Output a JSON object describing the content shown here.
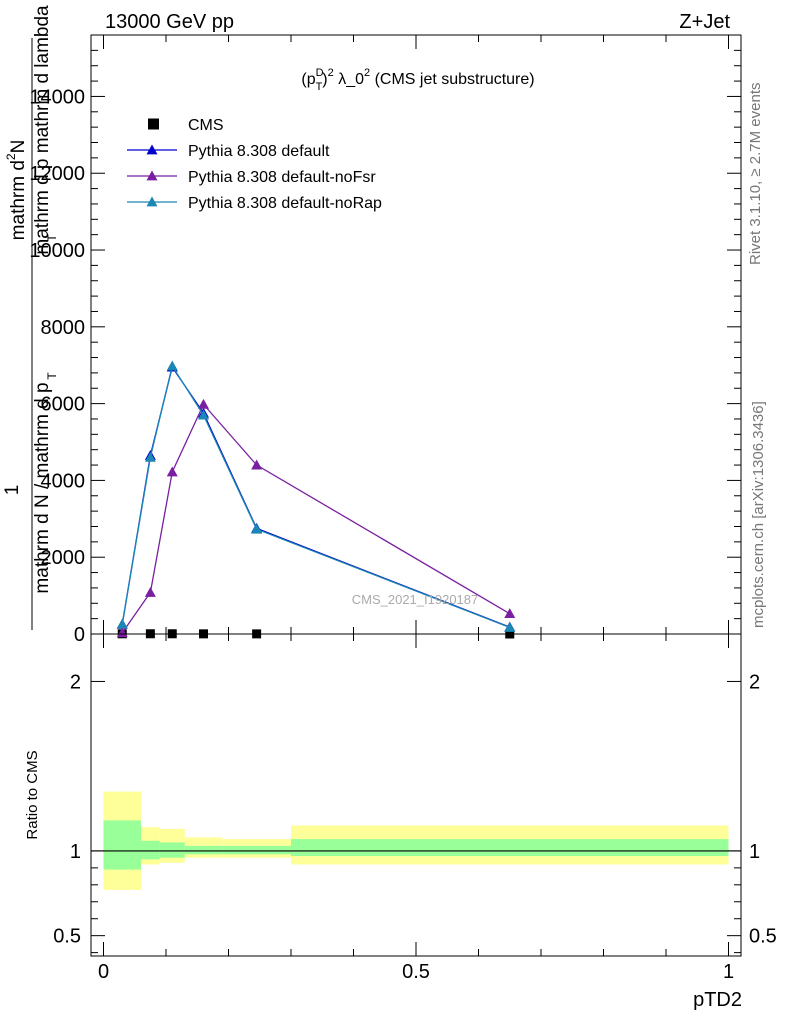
{
  "header": {
    "left": "13000 GeV pp",
    "right": "Z+Jet"
  },
  "side_labels": {
    "rivet": "Rivet 3.1.10, ≥ 2.7M events",
    "mcplots": "mcplots.cern.ch [arXiv:1306.3436]"
  },
  "chart_data": [
    {
      "type": "line",
      "title_parts": {
        "pre": "(p",
        "sup1": "D",
        "sub": "T",
        "close": ")",
        "sup2": "2",
        "mid": " λ_0",
        "sup3": "2",
        "post": " (CMS jet substructure)"
      },
      "ylabel_parts": {
        "one": "1",
        "num": "mathrm d",
        "numsup": "2",
        "numafter": "N",
        "den_lines": [
          "mathrm d N / mathrm d p",
          "mathrm d p  mathrm d lambda"
        ],
        "den_sub": "T"
      },
      "watermark": "CMS_2021_I1920187",
      "ylim": [
        0,
        15600
      ],
      "yticks": [
        0,
        2000,
        4000,
        6000,
        8000,
        10000,
        12000,
        14000
      ],
      "ytick_labels": [
        "0",
        "2000",
        "4000",
        "6000",
        "8000",
        "10000",
        "12000",
        "14000"
      ],
      "xlim": [
        -0.02,
        1.02
      ],
      "legend_position": "top-left",
      "series": [
        {
          "name": "CMS",
          "color": "#000000",
          "marker": "square",
          "x": [
            0.03,
            0.075,
            0.11,
            0.16,
            0.245,
            0.65
          ],
          "y": [
            5,
            6,
            6,
            4,
            3,
            0
          ]
        },
        {
          "name": "Pythia 8.308 default",
          "color": "#0000cc",
          "marker": "triangle",
          "x": [
            0.03,
            0.075,
            0.11,
            0.16,
            0.245,
            0.65
          ],
          "y": [
            250,
            4650,
            6950,
            5750,
            2750,
            180
          ]
        },
        {
          "name": "Pythia 8.308 default-noFsr",
          "color": "#7a1fa2",
          "marker": "triangle",
          "x": [
            0.03,
            0.075,
            0.11,
            0.16,
            0.245,
            0.65
          ],
          "y": [
            30,
            1080,
            4220,
            5980,
            4400,
            530
          ]
        },
        {
          "name": "Pythia 8.308 default-noRap",
          "color": "#1a87b5",
          "marker": "triangle",
          "x": [
            0.03,
            0.075,
            0.11,
            0.16,
            0.245,
            0.65
          ],
          "y": [
            260,
            4600,
            6980,
            5700,
            2730,
            170
          ]
        }
      ]
    },
    {
      "type": "area",
      "ylabel": "Ratio to CMS",
      "xlabel": "pTD2",
      "ylim": [
        0.38,
        2.28
      ],
      "yticks": [
        0.5,
        1,
        2
      ],
      "ytick_labels": [
        "0.5",
        "1",
        "2"
      ],
      "xlim": [
        -0.02,
        1.02
      ],
      "xticks": [
        0,
        0.5,
        1
      ],
      "xtick_labels": [
        "0",
        "0.5",
        "1"
      ],
      "reference": 1,
      "colors": {
        "inner": "#99ff99",
        "outer": "#ffff99"
      },
      "bands": [
        {
          "x0": 0.0,
          "x1": 0.06,
          "in_lo": 0.89,
          "in_hi": 1.18,
          "out_lo": 0.77,
          "out_hi": 1.35
        },
        {
          "x0": 0.06,
          "x1": 0.09,
          "in_lo": 0.95,
          "in_hi": 1.06,
          "out_lo": 0.92,
          "out_hi": 1.14
        },
        {
          "x0": 0.09,
          "x1": 0.13,
          "in_lo": 0.96,
          "in_hi": 1.05,
          "out_lo": 0.93,
          "out_hi": 1.13
        },
        {
          "x0": 0.13,
          "x1": 0.19,
          "in_lo": 0.98,
          "in_hi": 1.03,
          "out_lo": 0.96,
          "out_hi": 1.08
        },
        {
          "x0": 0.19,
          "x1": 0.3,
          "in_lo": 0.98,
          "in_hi": 1.03,
          "out_lo": 0.96,
          "out_hi": 1.07
        },
        {
          "x0": 0.3,
          "x1": 1.0,
          "in_lo": 0.97,
          "in_hi": 1.07,
          "out_lo": 0.92,
          "out_hi": 1.15
        }
      ]
    }
  ]
}
